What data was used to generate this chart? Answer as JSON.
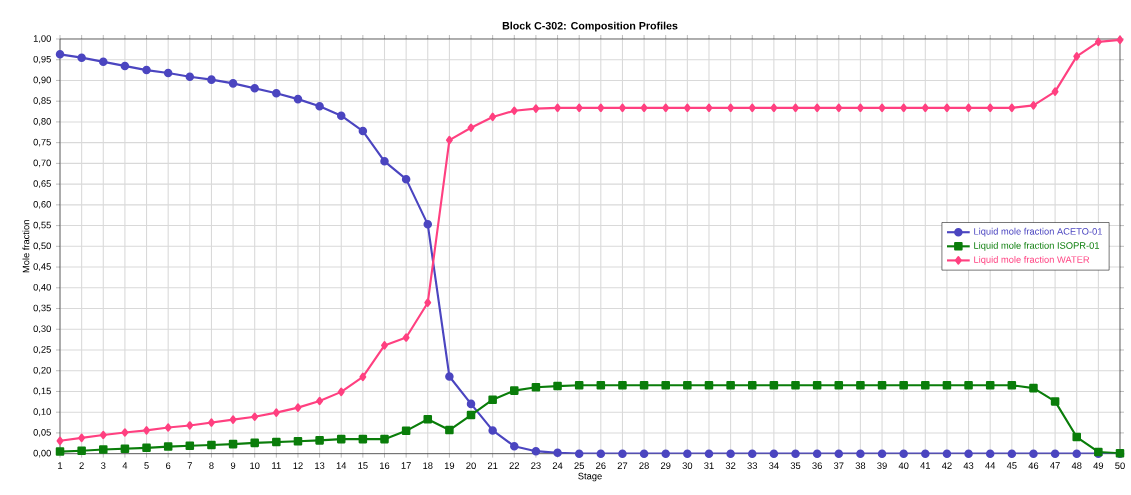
{
  "chart_data": {
    "type": "line",
    "title": "Block C-302: Composition Profiles",
    "xlabel": "Stage",
    "ylabel": "Mole fraction",
    "x": [
      1,
      2,
      3,
      4,
      5,
      6,
      7,
      8,
      9,
      10,
      11,
      12,
      13,
      14,
      15,
      16,
      17,
      18,
      19,
      20,
      21,
      22,
      23,
      24,
      25,
      26,
      27,
      28,
      29,
      30,
      31,
      32,
      33,
      34,
      35,
      36,
      37,
      38,
      39,
      40,
      41,
      42,
      43,
      44,
      45,
      46,
      47,
      48,
      49,
      50
    ],
    "series": [
      {
        "name": "Liquid mole fraction ACETO-01",
        "color": "#4b45c0",
        "marker": "circle",
        "values": [
          0.963,
          0.955,
          0.945,
          0.935,
          0.925,
          0.918,
          0.909,
          0.902,
          0.893,
          0.881,
          0.869,
          0.855,
          0.838,
          0.815,
          0.778,
          0.705,
          0.662,
          0.553,
          0.186,
          0.12,
          0.056,
          0.018,
          0.006,
          0.002,
          0,
          0,
          0,
          0,
          0,
          0,
          0,
          0,
          0,
          0,
          0,
          0,
          0,
          0,
          0,
          0,
          0,
          0,
          0,
          0,
          0,
          0,
          0,
          0,
          0,
          0
        ]
      },
      {
        "name": "Liquid mole fraction ISOPR-01",
        "color": "#0a7d0a",
        "marker": "square",
        "values": [
          0.005,
          0.007,
          0.01,
          0.012,
          0.014,
          0.017,
          0.019,
          0.021,
          0.023,
          0.026,
          0.028,
          0.03,
          0.032,
          0.035,
          0.035,
          0.035,
          0.055,
          0.083,
          0.057,
          0.093,
          0.13,
          0.152,
          0.16,
          0.163,
          0.165,
          0.165,
          0.165,
          0.165,
          0.165,
          0.165,
          0.165,
          0.165,
          0.165,
          0.165,
          0.165,
          0.165,
          0.165,
          0.165,
          0.165,
          0.165,
          0.165,
          0.165,
          0.165,
          0.165,
          0.165,
          0.158,
          0.126,
          0.04,
          0.004,
          0.001
        ]
      },
      {
        "name": "Liquid mole fraction WATER",
        "color": "#ff4080",
        "marker": "diamond",
        "values": [
          0.031,
          0.038,
          0.045,
          0.051,
          0.056,
          0.063,
          0.068,
          0.075,
          0.082,
          0.089,
          0.099,
          0.111,
          0.127,
          0.149,
          0.185,
          0.261,
          0.28,
          0.364,
          0.756,
          0.786,
          0.812,
          0.827,
          0.832,
          0.834,
          0.834,
          0.834,
          0.834,
          0.834,
          0.834,
          0.834,
          0.834,
          0.834,
          0.834,
          0.834,
          0.834,
          0.834,
          0.834,
          0.834,
          0.834,
          0.834,
          0.834,
          0.834,
          0.834,
          0.834,
          0.834,
          0.84,
          0.873,
          0.958,
          0.993,
          0.998
        ]
      }
    ],
    "xlim": [
      1,
      50
    ],
    "xticks": [
      1,
      2,
      3,
      4,
      5,
      6,
      7,
      8,
      9,
      10,
      11,
      12,
      13,
      14,
      15,
      16,
      17,
      18,
      19,
      20,
      21,
      22,
      23,
      24,
      25,
      26,
      27,
      28,
      29,
      30,
      31,
      32,
      33,
      34,
      35,
      36,
      37,
      38,
      39,
      40,
      41,
      42,
      43,
      44,
      45,
      46,
      47,
      48,
      49,
      50
    ],
    "ylim": [
      0,
      1
    ],
    "yticks": [
      {
        "value": 0,
        "label": "0,00"
      },
      {
        "value": 0.05,
        "label": "0,05"
      },
      {
        "value": 0.1,
        "label": "0,10"
      },
      {
        "value": 0.15,
        "label": "0,15"
      },
      {
        "value": 0.2,
        "label": "0,20"
      },
      {
        "value": 0.25,
        "label": "0,25"
      },
      {
        "value": 0.3,
        "label": "0,30"
      },
      {
        "value": 0.35,
        "label": "0,35"
      },
      {
        "value": 0.4,
        "label": "0,40"
      },
      {
        "value": 0.45,
        "label": "0,45"
      },
      {
        "value": 0.5,
        "label": "0,50"
      },
      {
        "value": 0.55,
        "label": "0,55"
      },
      {
        "value": 0.6,
        "label": "0,60"
      },
      {
        "value": 0.65,
        "label": "0,65"
      },
      {
        "value": 0.7,
        "label": "0,70"
      },
      {
        "value": 0.75,
        "label": "0,75"
      },
      {
        "value": 0.8,
        "label": "0,80"
      },
      {
        "value": 0.85,
        "label": "0,85"
      },
      {
        "value": 0.9,
        "label": "0,90"
      },
      {
        "value": 0.95,
        "label": "0,95"
      },
      {
        "value": 1,
        "label": "1,00"
      }
    ],
    "grid": true,
    "legend": "right",
    "line_style": "solid"
  }
}
